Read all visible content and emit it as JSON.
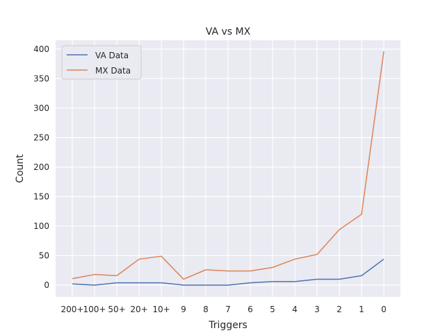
{
  "chart_data": {
    "type": "line",
    "title": "VA vs MX",
    "xlabel": "Triggers",
    "ylabel": "Count",
    "categories": [
      "200+",
      "100+",
      "50+",
      "20+",
      "10+",
      "9",
      "8",
      "7",
      "6",
      "5",
      "4",
      "3",
      "2",
      "1",
      "0"
    ],
    "series": [
      {
        "name": "VA Data",
        "color": "#4c72b0",
        "values": [
          2,
          0,
          4,
          4,
          4,
          0,
          0,
          0,
          4,
          6,
          6,
          10,
          10,
          16,
          44
        ]
      },
      {
        "name": "MX Data",
        "color": "#dd8452",
        "values": [
          11,
          18,
          16,
          44,
          49,
          10,
          26,
          24,
          24,
          30,
          44,
          52,
          94,
          120,
          396
        ]
      }
    ],
    "ylim": [
      -20,
      415
    ],
    "yticks": [
      0,
      50,
      100,
      150,
      200,
      250,
      300,
      350,
      400
    ],
    "grid": true,
    "legend_position": "top-left",
    "background_color": "#eaeaf2"
  }
}
